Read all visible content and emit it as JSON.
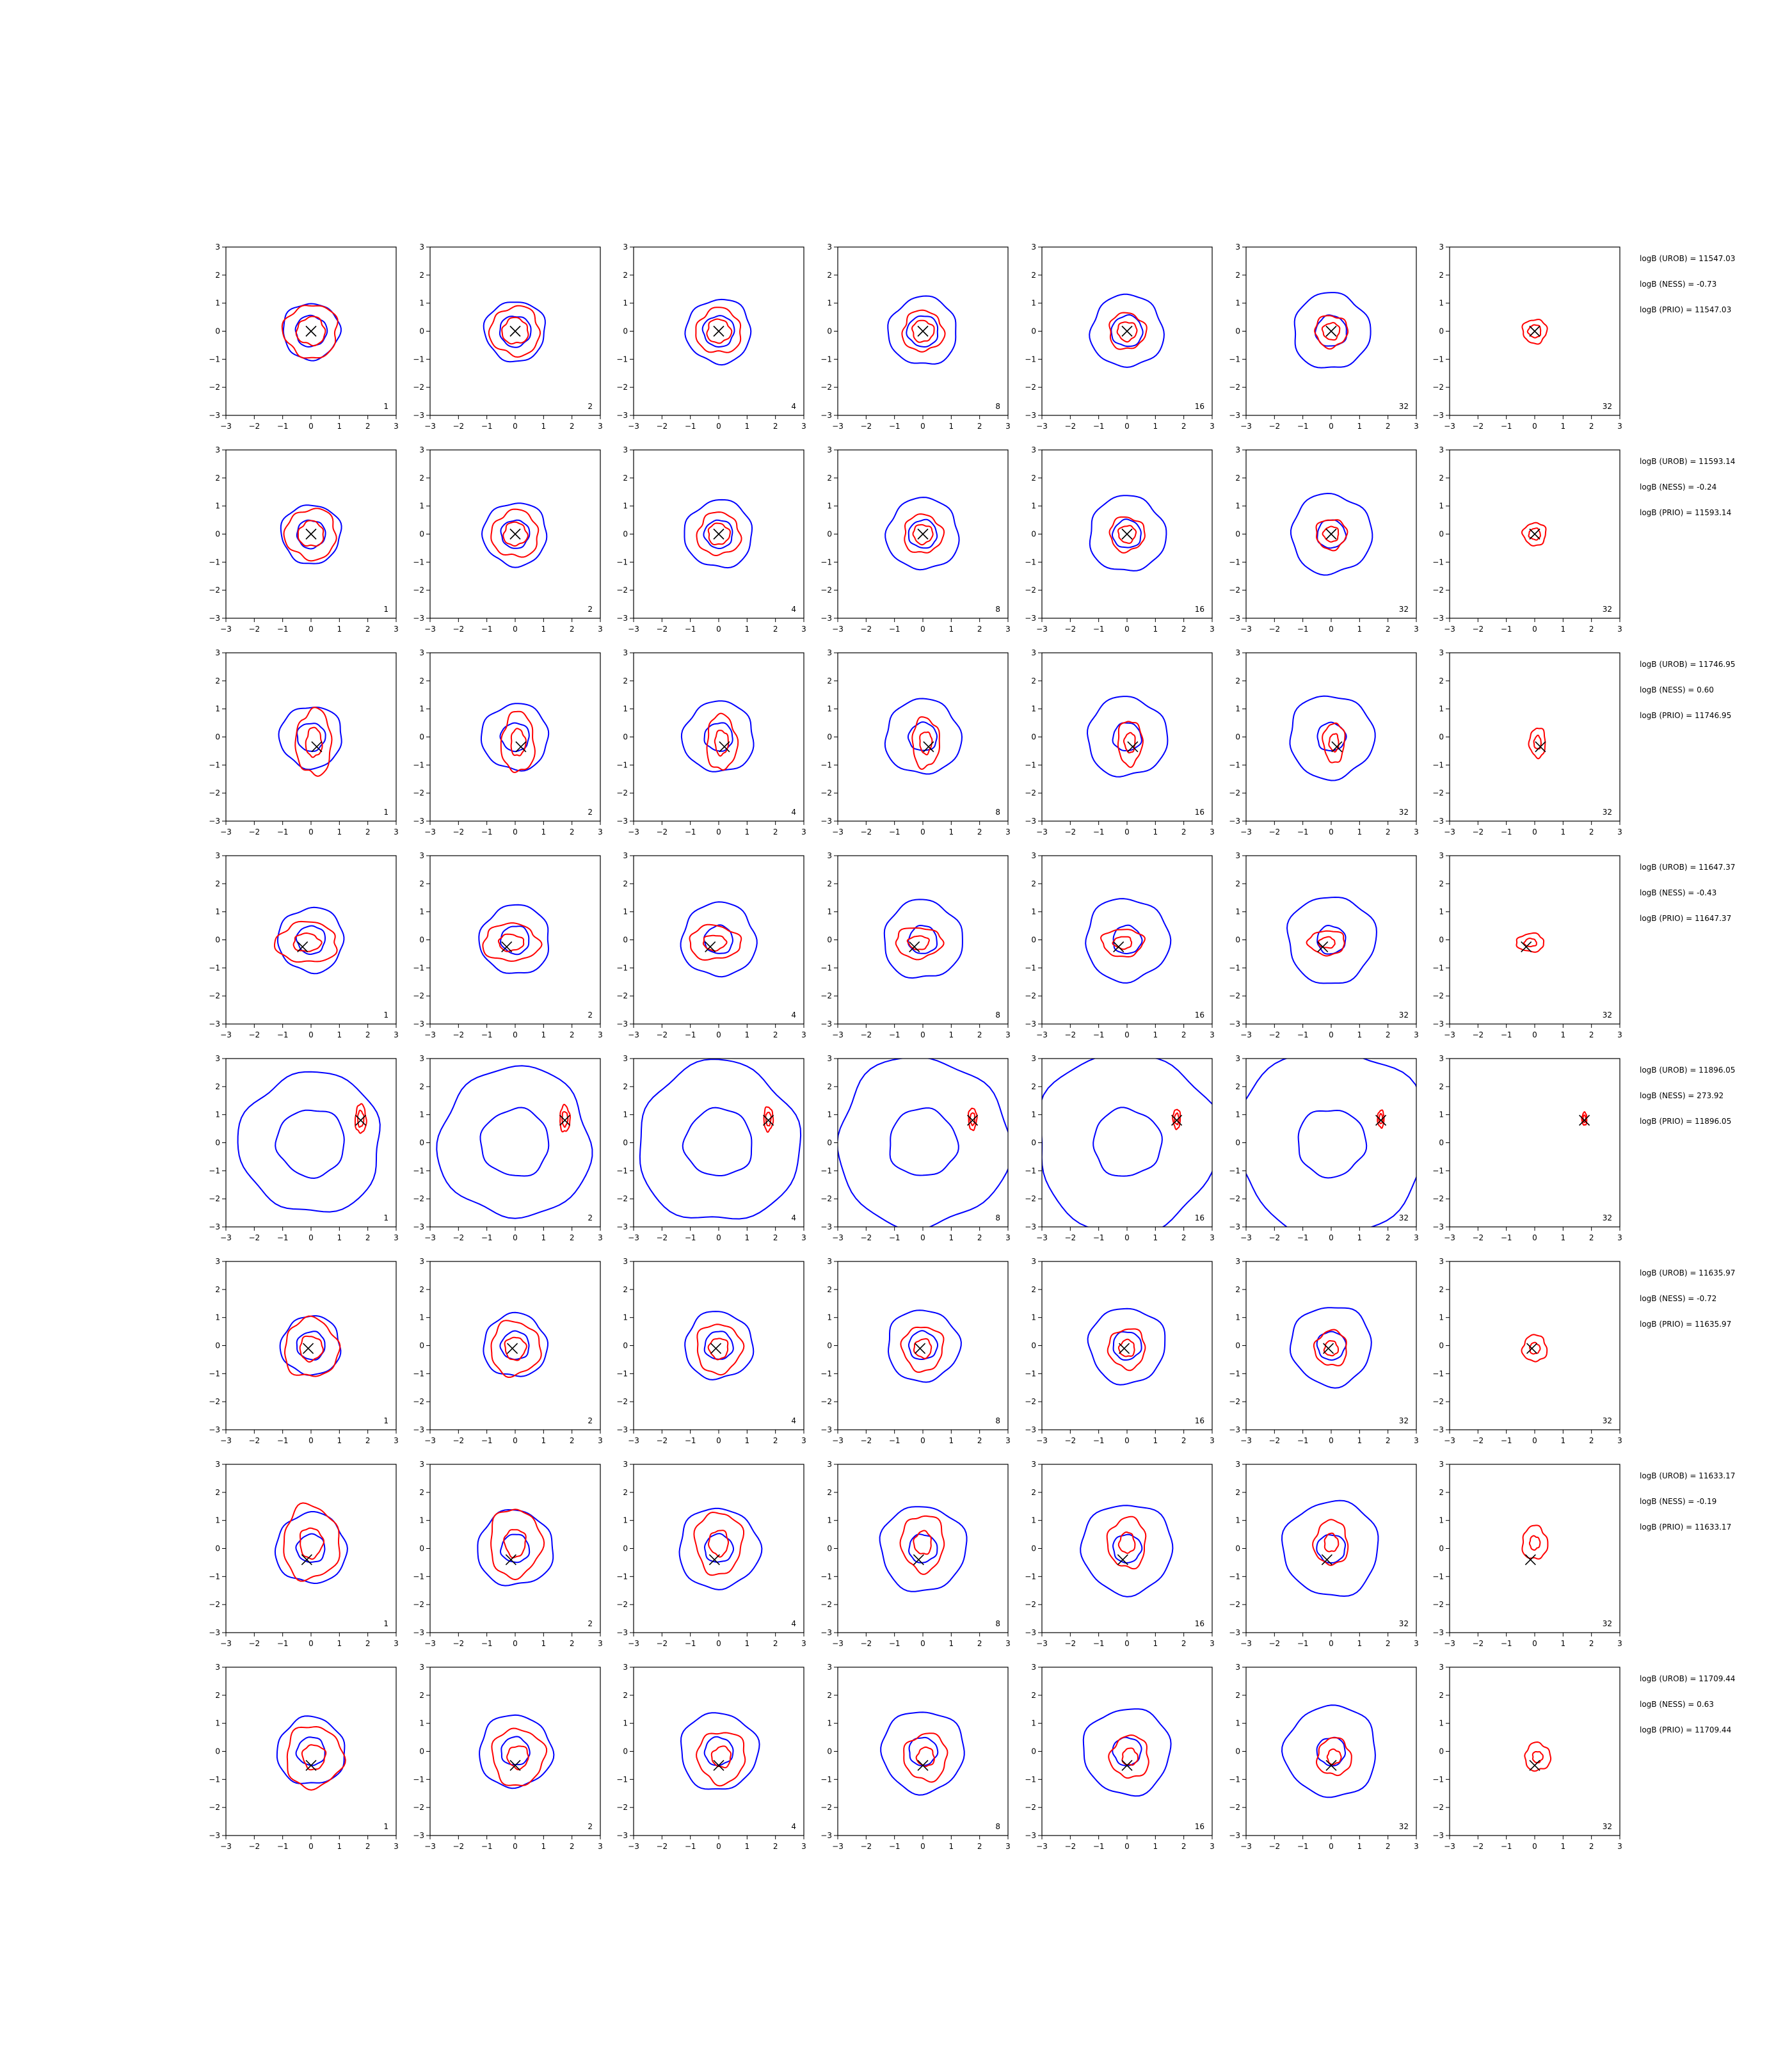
{
  "chart_data": {
    "type": "contour",
    "grid": {
      "rows": 8,
      "columns": 7
    },
    "xlim": [
      -3,
      3
    ],
    "ylim": [
      -3,
      3
    ],
    "xticks": [
      -3,
      -2,
      -1,
      0,
      1,
      2,
      3
    ],
    "yticks": [
      -3,
      -2,
      -1,
      0,
      1,
      2,
      3
    ],
    "grid_lines": false,
    "colors": {
      "blue_contours": "#0000ff",
      "red_contours": "#ff0000",
      "marker": "#000000"
    },
    "column_labels": [
      "1",
      "2",
      "4",
      "8",
      "16",
      "32",
      "32"
    ],
    "rows": [
      {
        "marker": [
          0.0,
          0.0
        ],
        "blue_r": [
          0.55,
          1.0
        ],
        "red_r": [
          0.5,
          0.95
        ],
        "red_offset": [
          0,
          0
        ],
        "red_stretch": [
          1,
          1
        ],
        "annotations": [
          "logB (UROB) = 11547.03",
          "logB (NESS) = -0.73",
          "logB (PRIO) = 11547.03"
        ]
      },
      {
        "marker": [
          0.0,
          0.0
        ],
        "blue_r": [
          0.5,
          1.05
        ],
        "red_r": [
          0.45,
          0.9
        ],
        "red_offset": [
          0,
          0
        ],
        "red_stretch": [
          1,
          1
        ],
        "annotations": [
          "logB (UROB) = 11593.14",
          "logB (NESS) = -0.24",
          "logB (PRIO) = 11593.14"
        ]
      },
      {
        "marker": [
          0.2,
          -0.35
        ],
        "blue_r": [
          0.5,
          1.1
        ],
        "red_r": [
          0.4,
          0.9
        ],
        "red_offset": [
          0.1,
          -0.2
        ],
        "red_stretch": [
          0.7,
          1.3
        ],
        "annotations": [
          "logB (UROB) = 11746.95",
          "logB (NESS) = 0.60",
          "logB (PRIO) = 11746.95"
        ]
      },
      {
        "marker": [
          -0.3,
          -0.25
        ],
        "blue_r": [
          0.5,
          1.15
        ],
        "red_r": [
          0.4,
          0.9
        ],
        "red_offset": [
          -0.15,
          -0.1
        ],
        "red_stretch": [
          1.2,
          0.8
        ],
        "annotations": [
          "logB (UROB) = 11647.37",
          "logB (NESS) = -0.43",
          "logB (PRIO) = 11647.37"
        ]
      },
      {
        "marker": [
          1.75,
          0.8
        ],
        "blue_r": [
          1.2,
          2.5
        ],
        "red_r": [
          0.18,
          0.32
        ],
        "red_offset": [
          1.75,
          0.85
        ],
        "red_stretch": [
          0.6,
          1.6
        ],
        "annotations": [
          "logB (UROB) = 11896.05",
          "logB (NESS) = 273.92",
          "logB (PRIO) = 11896.05"
        ]
      },
      {
        "marker": [
          -0.1,
          -0.1
        ],
        "blue_r": [
          0.5,
          1.05
        ],
        "red_r": [
          0.4,
          0.95
        ],
        "red_offset": [
          0,
          -0.1
        ],
        "red_stretch": [
          1,
          1.1
        ],
        "annotations": [
          "logB (UROB) = 11635.97",
          "logB (NESS) = -0.72",
          "logB (PRIO) = 11635.97"
        ]
      },
      {
        "marker": [
          -0.15,
          -0.4
        ],
        "blue_r": [
          0.5,
          1.25
        ],
        "red_r": [
          0.45,
          1.1
        ],
        "red_offset": [
          0,
          0.2
        ],
        "red_stretch": [
          0.9,
          1.2
        ],
        "annotations": [
          "logB (UROB) = 11633.17",
          "logB (NESS) = -0.19",
          "logB (PRIO) = 11633.17"
        ]
      },
      {
        "marker": [
          0.0,
          -0.5
        ],
        "blue_r": [
          0.5,
          1.2
        ],
        "red_r": [
          0.4,
          1.0
        ],
        "red_offset": [
          0.1,
          -0.2
        ],
        "red_stretch": [
          1,
          1.1
        ],
        "annotations": [
          "logB (UROB) = 11709.44",
          "logB (NESS) = 0.63",
          "logB (PRIO) = 11709.44"
        ]
      }
    ]
  }
}
